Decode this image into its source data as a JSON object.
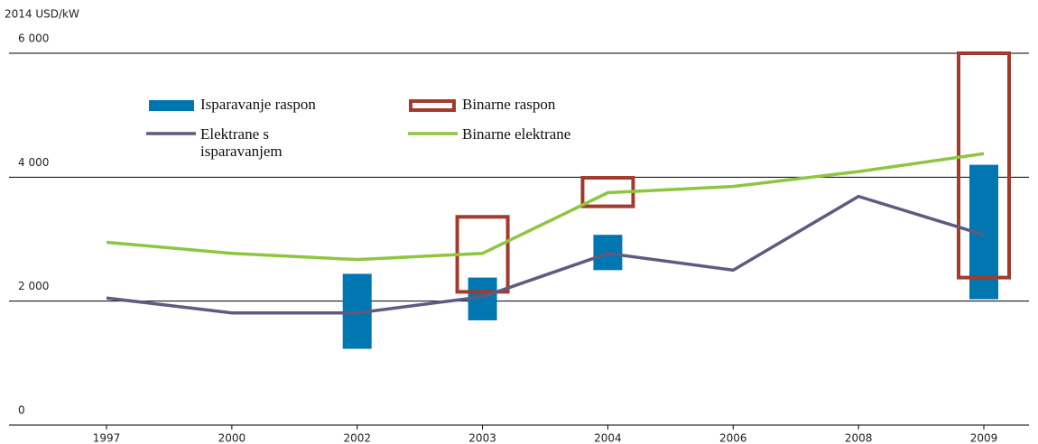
{
  "chart_data": {
    "type": "line",
    "y_label": "2014 USD/kW",
    "categories": [
      "1997",
      "2000",
      "2002",
      "2003",
      "2004",
      "2006",
      "2008",
      "2009"
    ],
    "series": [
      {
        "name": "Elektrane s isparavanjem",
        "color": "#5f5a82",
        "values": [
          2050,
          1810,
          1810,
          2070,
          2770,
          2500,
          3690,
          3070
        ]
      },
      {
        "name": "Binarne elektrane",
        "color": "#8dc63f",
        "values": [
          2950,
          2770,
          2670,
          2770,
          3750,
          3850,
          4090,
          4380
        ]
      }
    ],
    "ranges": [
      {
        "name": "Isparavanje raspon",
        "color": "#0077b0",
        "style": "filled",
        "low": [
          null,
          null,
          1230,
          1690,
          2500,
          null,
          null,
          2030
        ],
        "high": [
          null,
          null,
          2440,
          2380,
          3070,
          null,
          null,
          4200
        ]
      },
      {
        "name": "Binarne raspon",
        "color": "#a23b2c",
        "style": "outline",
        "low": [
          null,
          null,
          null,
          2150,
          3530,
          null,
          null,
          2380
        ],
        "high": [
          null,
          null,
          null,
          3360,
          3990,
          null,
          null,
          6000
        ]
      }
    ],
    "ylim": [
      0,
      6000
    ],
    "yticks": [
      {
        "value": 0,
        "label": "0"
      },
      {
        "value": 2000,
        "label": "2 000"
      },
      {
        "value": 4000,
        "label": "4 000"
      },
      {
        "value": 6000,
        "label": "6 000"
      }
    ],
    "grid": true
  }
}
